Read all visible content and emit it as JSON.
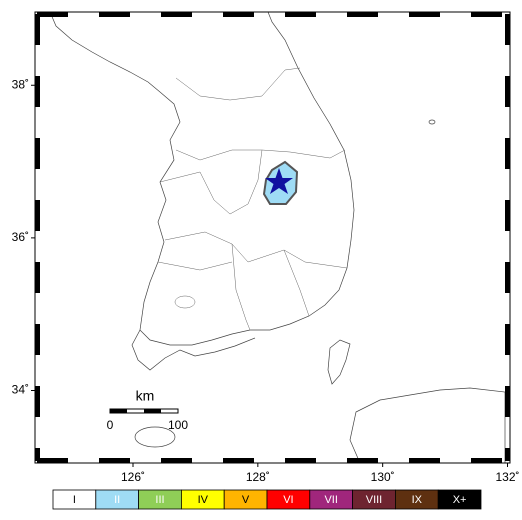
{
  "map": {
    "lon_ticks": [
      {
        "value": 126,
        "label": "126˚"
      },
      {
        "value": 128,
        "label": "128˚"
      },
      {
        "value": 130,
        "label": "130˚"
      },
      {
        "value": 132,
        "label": "132˚"
      }
    ],
    "lat_ticks": [
      {
        "value": 38,
        "label": "38˚"
      },
      {
        "value": 36,
        "label": "36˚"
      },
      {
        "value": 34,
        "label": "34˚"
      }
    ],
    "scale_bar": {
      "unit": "km",
      "labels": [
        "0",
        "100"
      ]
    },
    "intensity_legend": [
      {
        "label": "I",
        "color": "#ffffff",
        "text_color": "#000000"
      },
      {
        "label": "II",
        "color": "#9fdcf5",
        "text_color": "#ffffff"
      },
      {
        "label": "III",
        "color": "#8fce57",
        "text_color": "#ffffff"
      },
      {
        "label": "IV",
        "color": "#ffff00",
        "text_color": "#000000"
      },
      {
        "label": "V",
        "color": "#ffb400",
        "text_color": "#000000"
      },
      {
        "label": "VI",
        "color": "#ff0000",
        "text_color": "#ffffff"
      },
      {
        "label": "VII",
        "color": "#a0267c",
        "text_color": "#ffffff"
      },
      {
        "label": "VIII",
        "color": "#6e2430",
        "text_color": "#ffffff"
      },
      {
        "label": "IX",
        "color": "#5e3010",
        "text_color": "#ffffff"
      },
      {
        "label": "X+",
        "color": "#000000",
        "text_color": "#ffffff"
      }
    ]
  }
}
